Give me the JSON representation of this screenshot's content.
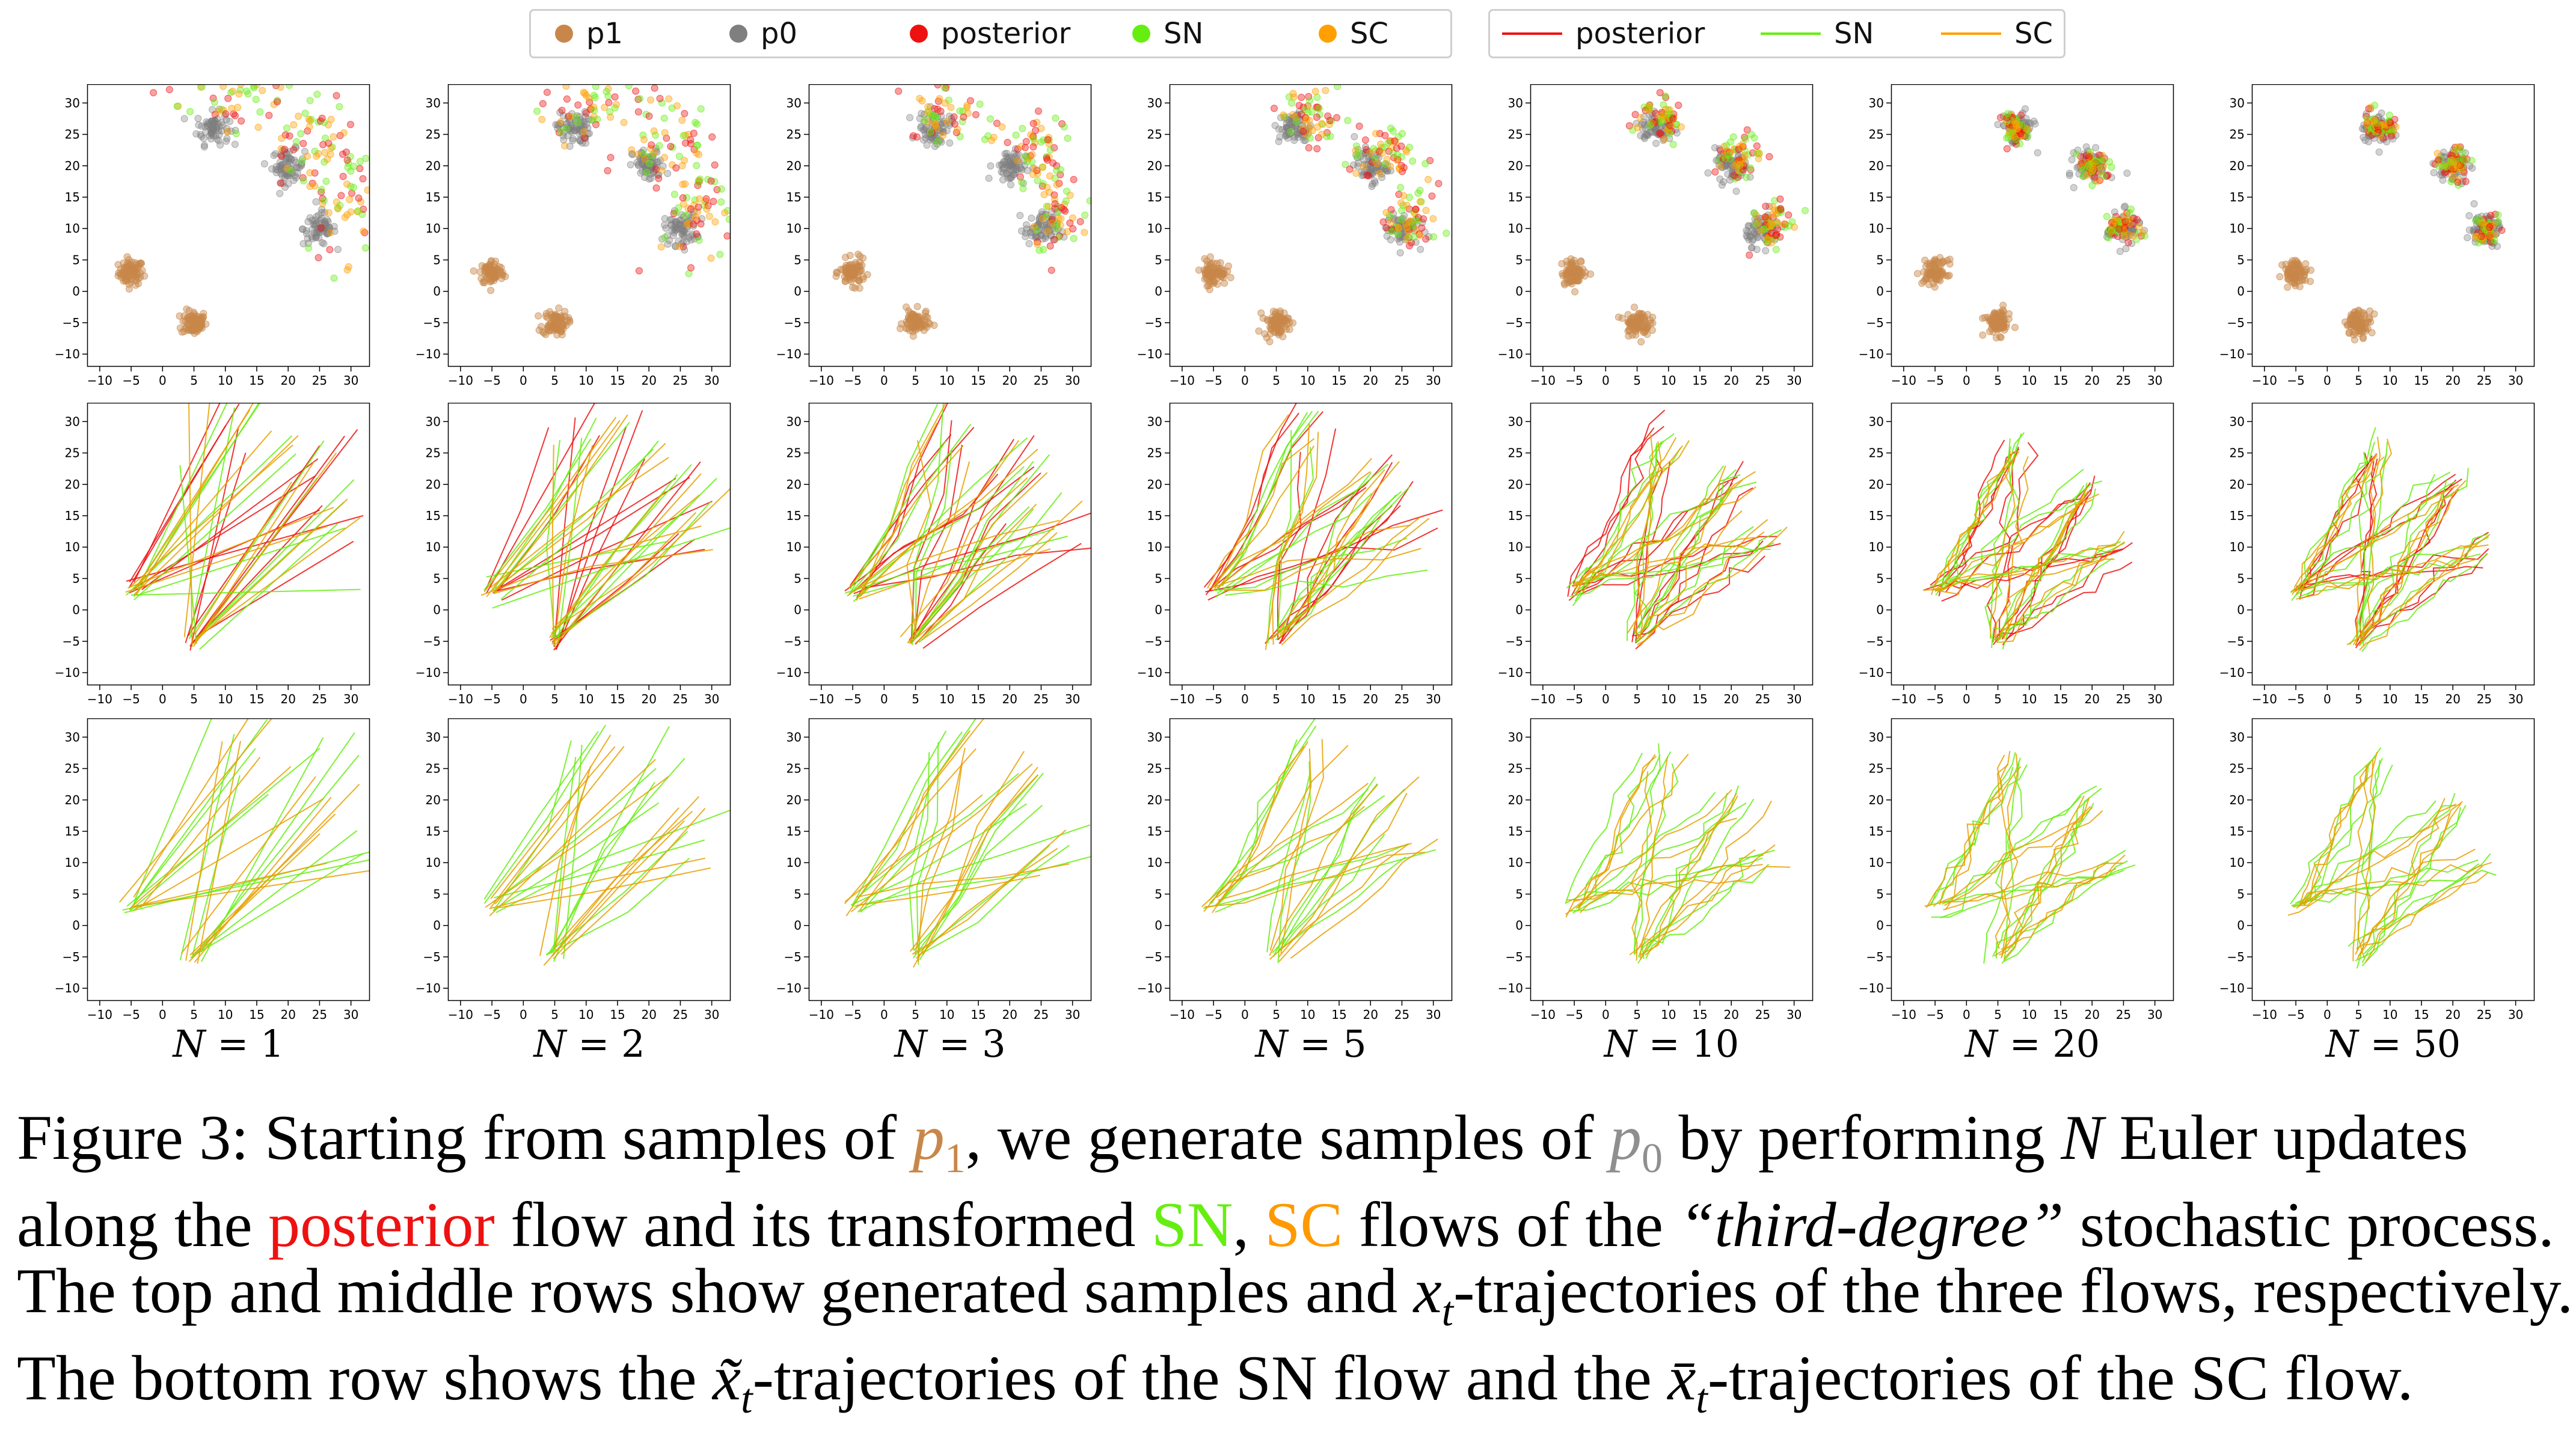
{
  "legend_markers": {
    "items": [
      {
        "label": "p1",
        "color": "#c8874a"
      },
      {
        "label": "p0",
        "color": "#7f7f7f"
      },
      {
        "label": "posterior",
        "color": "#ee1111"
      },
      {
        "label": "SN",
        "color": "#66ee11"
      },
      {
        "label": "SC",
        "color": "#ffa000"
      }
    ]
  },
  "legend_lines": {
    "items": [
      {
        "label": "posterior",
        "color": "#ee1111"
      },
      {
        "label": "SN",
        "color": "#66ee11"
      },
      {
        "label": "SC",
        "color": "#ffa000"
      }
    ]
  },
  "chart_data": [
    {
      "type": "scatter",
      "row": "top",
      "title": "",
      "xlabel": "",
      "ylabel": "",
      "xlim": [
        -12,
        33
      ],
      "ylim": [
        -12,
        33
      ],
      "x_ticks": [
        "−10",
        "−5",
        "0",
        "5",
        "10",
        "15",
        "20",
        "25",
        "30"
      ],
      "y_ticks": [
        "−10",
        "−5",
        "0",
        "5",
        "10",
        "15",
        "20",
        "25",
        "30"
      ],
      "series": [
        {
          "name": "p1",
          "clusters": [
            [
              -5,
              3
            ],
            [
              5,
              -5
            ]
          ]
        },
        {
          "name": "p0",
          "clusters": [
            [
              8,
              26
            ],
            [
              20,
              20
            ],
            [
              25,
              10
            ]
          ]
        },
        {
          "name": "posterior",
          "clusters": []
        },
        {
          "name": "SN",
          "clusters": []
        },
        {
          "name": "SC",
          "clusters": []
        }
      ]
    },
    {
      "type": "line",
      "row": "middle",
      "title": "",
      "xlabel": "",
      "ylabel": "",
      "xlim": [
        -12,
        33
      ],
      "ylim": [
        -12,
        33
      ],
      "series": [
        {
          "name": "posterior",
          "description": "x_t trajectories"
        },
        {
          "name": "SN",
          "description": "x_t trajectories"
        },
        {
          "name": "SC",
          "description": "x_t trajectories"
        }
      ]
    },
    {
      "type": "line",
      "row": "bottom",
      "title": "",
      "xlabel": "",
      "ylabel": "",
      "xlim": [
        -12,
        33
      ],
      "ylim": [
        -12,
        33
      ],
      "series": [
        {
          "name": "SN",
          "description": "x̃_t trajectories"
        },
        {
          "name": "SC",
          "description": "x̄_t trajectories"
        }
      ]
    }
  ],
  "columns": [
    {
      "n_var": "N",
      "n_value": "= 1"
    },
    {
      "n_var": "N",
      "n_value": "= 2"
    },
    {
      "n_var": "N",
      "n_value": "= 3"
    },
    {
      "n_var": "N",
      "n_value": "= 5"
    },
    {
      "n_var": "N",
      "n_value": "= 10"
    },
    {
      "n_var": "N",
      "n_value": "= 20"
    },
    {
      "n_var": "N",
      "n_value": "= 50"
    }
  ],
  "colors": {
    "p1": "#c8874a",
    "p0": "#7f7f7f",
    "posterior": "#ee1111",
    "SN": "#66ee11",
    "SC": "#ffa000",
    "sc_traj": "#e8a000",
    "axis": "#000000"
  },
  "caption": {
    "l1_a": "Figure 3: Starting from samples of ",
    "l1_p1": "p",
    "l1_p1_sub": "1",
    "l1_b": ", we generate samples of ",
    "l1_p0": "p",
    "l1_p0_sub": "0",
    "l1_c": " by performing ",
    "l1_N": "N",
    "l1_d": " Euler updates",
    "l2_a": "along the ",
    "l2_post": "posterior",
    "l2_b": " flow and its transformed ",
    "l2_sn": "SN",
    "l2_comma": ", ",
    "l2_sc": "SC",
    "l2_c": " flows of the ",
    "l2_third": "“third-degree”",
    "l2_d": " stochastic process.",
    "l3_a": "The top and middle rows show generated samples and ",
    "l3_x": "x",
    "l3_t": "t",
    "l3_b": "-trajectories of the three flows, respectively.",
    "l4_a": "The bottom row shows the ",
    "l4_xt": "x̃",
    "l4_t1": "t",
    "l4_b": "-trajectories of the SN flow and the ",
    "l4_xb": "x̄",
    "l4_t2": "t",
    "l4_c": "-trajectories of the SC flow."
  }
}
